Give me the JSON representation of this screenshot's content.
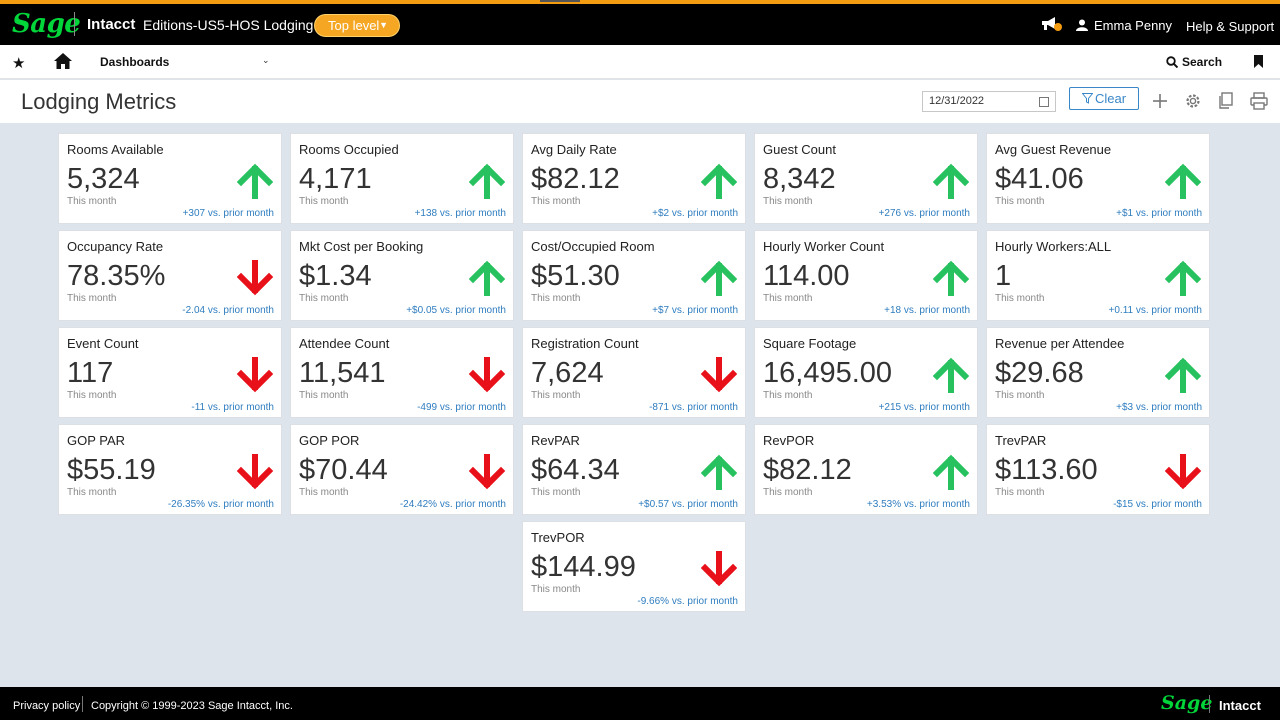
{
  "topbar": {
    "logo": "Sage",
    "brand": "Intacct",
    "company": "Editions-US5-HOS Lodging",
    "level_button": "Top level",
    "user_name": "Emma Penny",
    "help": "Help & Support",
    "accent_color": "#f39c12"
  },
  "nav": {
    "dashboards_label": "Dashboards",
    "search_label": "Search"
  },
  "header": {
    "title": "Lodging Metrics",
    "date_value": "12/31/2022",
    "clear_label": "Clear"
  },
  "colors": {
    "up": "#27c25f",
    "down": "#e8111a",
    "link": "#2f7dbf"
  },
  "cards": [
    {
      "title": "Rooms Available",
      "value": "5,324",
      "period": "This month",
      "change": "+307 vs. prior month",
      "trend": "up"
    },
    {
      "title": "Rooms Occupied",
      "value": "4,171",
      "period": "This month",
      "change": "+138 vs. prior month",
      "trend": "up"
    },
    {
      "title": "Avg Daily Rate",
      "value": "$82.12",
      "period": "This month",
      "change": "+$2 vs. prior month",
      "trend": "up"
    },
    {
      "title": "Guest Count",
      "value": "8,342",
      "period": "This month",
      "change": "+276 vs. prior month",
      "trend": "up"
    },
    {
      "title": "Avg Guest Revenue",
      "value": "$41.06",
      "period": "This month",
      "change": "+$1 vs. prior month",
      "trend": "up"
    },
    {
      "title": "Occupancy Rate",
      "value": "78.35%",
      "period": "This month",
      "change": "-2.04 vs. prior month",
      "trend": "down"
    },
    {
      "title": "Mkt Cost per Booking",
      "value": "$1.34",
      "period": "This month",
      "change": "+$0.05 vs. prior month",
      "trend": "up"
    },
    {
      "title": "Cost/Occupied Room",
      "value": "$51.30",
      "period": "This month",
      "change": "+$7 vs. prior month",
      "trend": "up"
    },
    {
      "title": "Hourly Worker Count",
      "value": "114.00",
      "period": "This month",
      "change": "+18 vs. prior month",
      "trend": "up"
    },
    {
      "title": "Hourly Workers:ALL",
      "value": "1",
      "period": "This month",
      "change": "+0.11 vs. prior month",
      "trend": "up"
    },
    {
      "title": "Event Count",
      "value": "117",
      "period": "This month",
      "change": "-11 vs. prior month",
      "trend": "down"
    },
    {
      "title": "Attendee Count",
      "value": "11,541",
      "period": "This month",
      "change": "-499 vs. prior month",
      "trend": "down"
    },
    {
      "title": "Registration Count",
      "value": "7,624",
      "period": "This month",
      "change": "-871 vs. prior month",
      "trend": "down"
    },
    {
      "title": "Square Footage",
      "value": "16,495.00",
      "period": "This month",
      "change": "+215 vs. prior month",
      "trend": "up"
    },
    {
      "title": "Revenue per Attendee",
      "value": "$29.68",
      "period": "This month",
      "change": "+$3 vs. prior month",
      "trend": "up"
    },
    {
      "title": "GOP PAR",
      "value": "$55.19",
      "period": "This month",
      "change": "-26.35% vs. prior month",
      "trend": "down"
    },
    {
      "title": "GOP POR",
      "value": "$70.44",
      "period": "This month",
      "change": "-24.42% vs. prior month",
      "trend": "down"
    },
    {
      "title": "RevPAR",
      "value": "$64.34",
      "period": "This month",
      "change": "+$0.57 vs. prior month",
      "trend": "up"
    },
    {
      "title": "RevPOR",
      "value": "$82.12",
      "period": "This month",
      "change": "+3.53% vs. prior month",
      "trend": "up"
    },
    {
      "title": "TrevPAR",
      "value": "$113.60",
      "period": "This month",
      "change": "-$15 vs. prior month",
      "trend": "down"
    },
    {
      "title": "TrevPOR",
      "value": "$144.99",
      "period": "This month",
      "change": "-9.66% vs. prior month",
      "trend": "down"
    }
  ],
  "footer": {
    "privacy": "Privacy policy",
    "copyright": "Copyright © 1999-2023 Sage Intacct, Inc.",
    "logo": "Sage",
    "brand": "Intacct"
  }
}
